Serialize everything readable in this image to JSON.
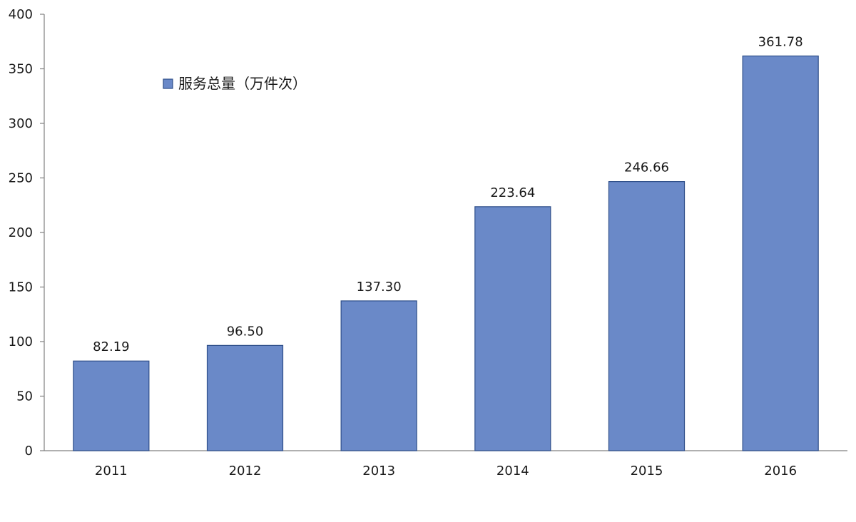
{
  "chart_data": {
    "type": "bar",
    "categories": [
      "2011",
      "2012",
      "2013",
      "2014",
      "2015",
      "2016"
    ],
    "series": [
      {
        "name": "服务总量（万件次）",
        "values": [
          82.19,
          96.5,
          137.3,
          223.64,
          246.66,
          361.78
        ],
        "labels": [
          "82.19",
          "96.50",
          "137.30",
          "223.64",
          "246.66",
          "361.78"
        ]
      }
    ],
    "ylim": [
      0,
      400
    ],
    "yticks": [
      0,
      50,
      100,
      150,
      200,
      250,
      300,
      350,
      400
    ],
    "grid": false,
    "legend_position": "top-left",
    "colors": {
      "bar_fill": "#6A89C8",
      "bar_stroke": "#2F4F8A",
      "axis": "#808080"
    }
  }
}
